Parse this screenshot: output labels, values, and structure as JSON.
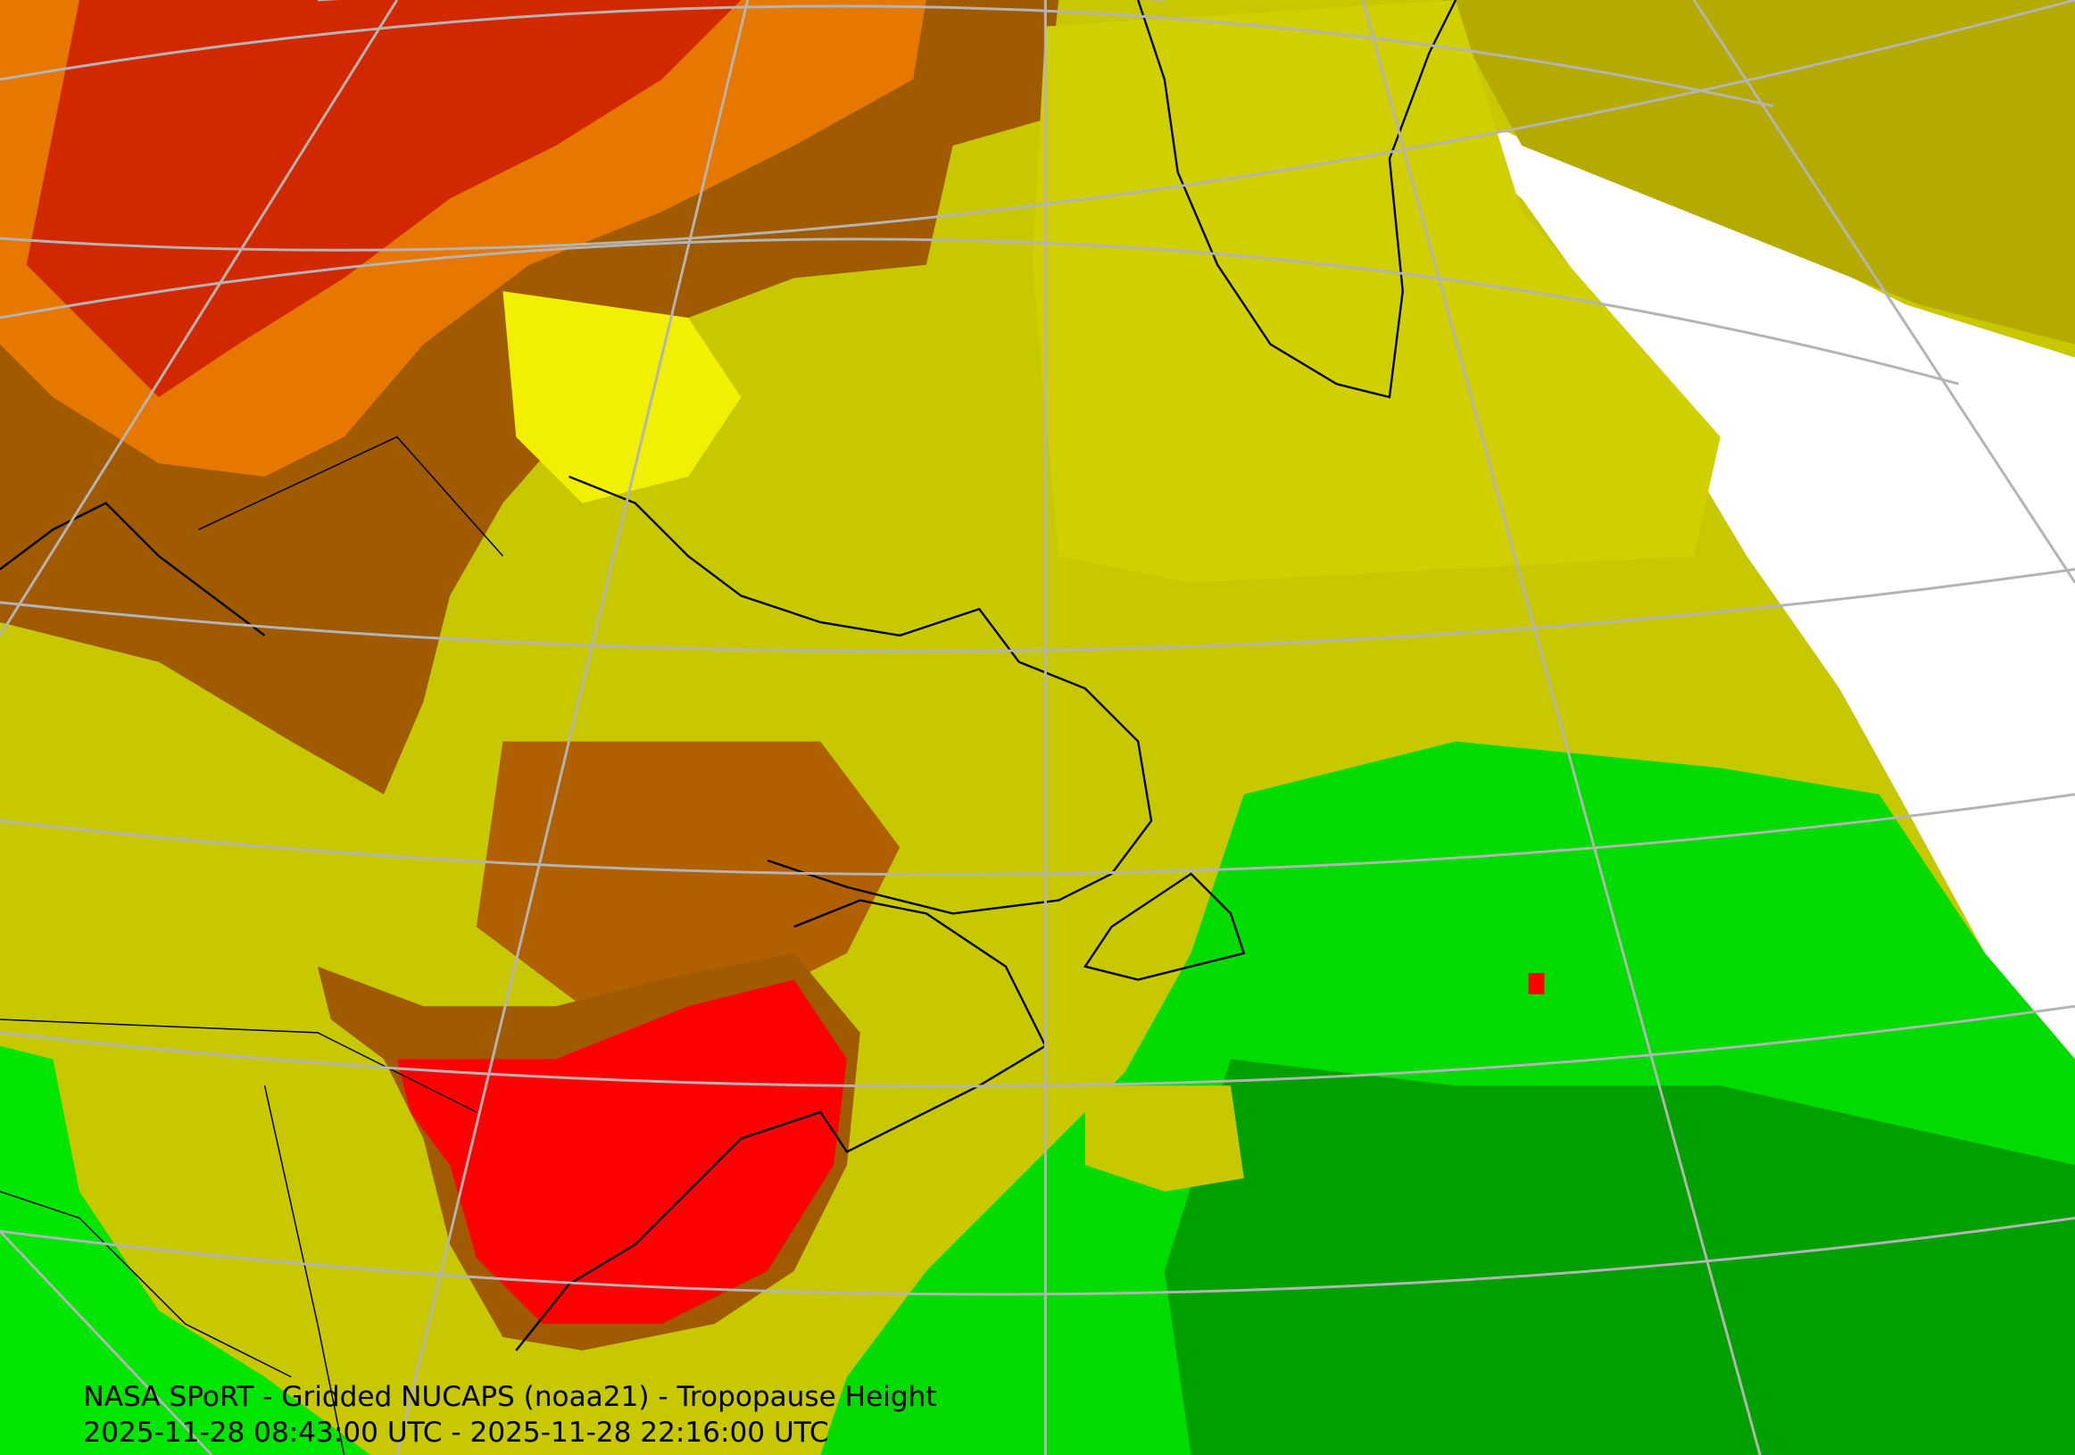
{
  "caption": {
    "title": "NASA SPoRT - Gridded NUCAPS (noaa21) - Tropopause Height",
    "time_range": "2025-11-28 08:43:00 UTC - 2025-11-28 22:16:00 UTC"
  }
}
